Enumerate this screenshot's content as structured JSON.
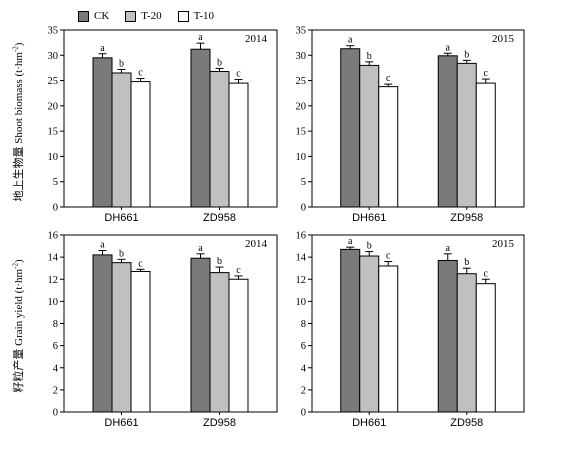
{
  "legend": [
    {
      "label": "CK",
      "color": "#7a7a7a"
    },
    {
      "label": "T-20",
      "color": "#c0c0c0"
    },
    {
      "label": "T-10",
      "color": "#ffffff"
    }
  ],
  "ylabels": {
    "top": {
      "cn": "地上生物量",
      "en": "Shoot biomass (t·hm",
      "sup": "-2",
      "close": ")"
    },
    "bottom": {
      "cn": "籽粒产量",
      "en": "Grain yield (t·hm",
      "sup": "-2",
      "close": ")"
    }
  },
  "chart_data": [
    {
      "type": "bar",
      "year_label": "2014",
      "categories": [
        "DH661",
        "ZD958"
      ],
      "ylim": [
        0,
        35
      ],
      "yticks": [
        0,
        5,
        10,
        15,
        20,
        25,
        30,
        35
      ],
      "series": [
        {
          "name": "CK",
          "values": [
            29.5,
            31.2
          ],
          "errors": [
            0.8,
            1.2
          ],
          "letters": [
            "a",
            "a"
          ]
        },
        {
          "name": "T-20",
          "values": [
            26.5,
            26.8
          ],
          "errors": [
            0.7,
            0.6
          ],
          "letters": [
            "b",
            "b"
          ]
        },
        {
          "name": "T-10",
          "values": [
            24.8,
            24.5
          ],
          "errors": [
            0.6,
            0.7
          ],
          "letters": [
            "c",
            "c"
          ]
        }
      ]
    },
    {
      "type": "bar",
      "year_label": "2015",
      "categories": [
        "DH661",
        "ZD958"
      ],
      "ylim": [
        0,
        35
      ],
      "yticks": [
        0,
        5,
        10,
        15,
        20,
        25,
        30,
        35
      ],
      "series": [
        {
          "name": "CK",
          "values": [
            31.3,
            29.9
          ],
          "errors": [
            0.6,
            0.5
          ],
          "letters": [
            "a",
            "a"
          ]
        },
        {
          "name": "T-20",
          "values": [
            28.0,
            28.4
          ],
          "errors": [
            0.7,
            0.6
          ],
          "letters": [
            "b",
            "b"
          ]
        },
        {
          "name": "T-10",
          "values": [
            23.8,
            24.5
          ],
          "errors": [
            0.5,
            0.8
          ],
          "letters": [
            "c",
            "c"
          ]
        }
      ]
    },
    {
      "type": "bar",
      "year_label": "2014",
      "categories": [
        "DH661",
        "ZD958"
      ],
      "ylim": [
        0,
        16
      ],
      "yticks": [
        0,
        2,
        4,
        6,
        8,
        10,
        12,
        14,
        16
      ],
      "series": [
        {
          "name": "CK",
          "values": [
            14.2,
            13.9
          ],
          "errors": [
            0.4,
            0.4
          ],
          "letters": [
            "a",
            "a"
          ]
        },
        {
          "name": "T-20",
          "values": [
            13.5,
            12.6
          ],
          "errors": [
            0.3,
            0.5
          ],
          "letters": [
            "b",
            "b"
          ]
        },
        {
          "name": "T-10",
          "values": [
            12.7,
            12.0
          ],
          "errors": [
            0.2,
            0.3
          ],
          "letters": [
            "c",
            "c"
          ]
        }
      ]
    },
    {
      "type": "bar",
      "year_label": "2015",
      "categories": [
        "DH661",
        "ZD958"
      ],
      "ylim": [
        0,
        16
      ],
      "yticks": [
        0,
        2,
        4,
        6,
        8,
        10,
        12,
        14,
        16
      ],
      "series": [
        {
          "name": "CK",
          "values": [
            14.7,
            13.7
          ],
          "errors": [
            0.2,
            0.6
          ],
          "letters": [
            "a",
            "a"
          ]
        },
        {
          "name": "T-20",
          "values": [
            14.1,
            12.5
          ],
          "errors": [
            0.4,
            0.5
          ],
          "letters": [
            "b",
            "b"
          ]
        },
        {
          "name": "T-10",
          "values": [
            13.2,
            11.6
          ],
          "errors": [
            0.4,
            0.4
          ],
          "letters": [
            "c",
            "c"
          ]
        }
      ]
    }
  ]
}
